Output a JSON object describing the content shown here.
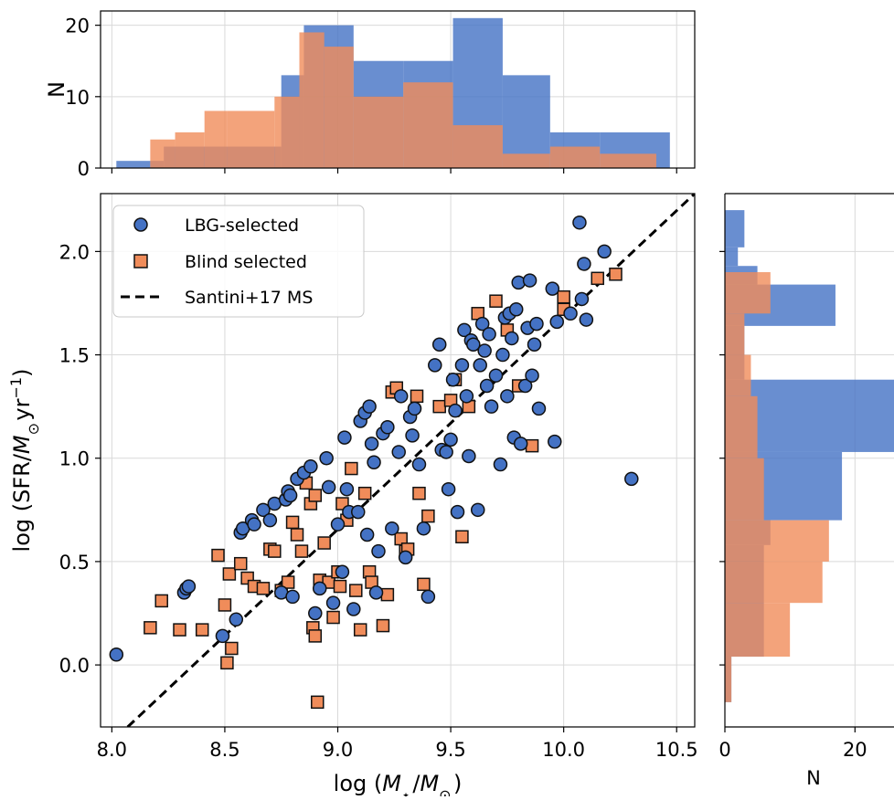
{
  "chart_data": [
    {
      "name": "main-scatter",
      "type": "scatter",
      "xlabel": "log (M⋆/M⊙)",
      "ylabel": "log (SFR/M⊙yr⁻¹)",
      "xlim": [
        7.95,
        10.58
      ],
      "ylim": [
        -0.3,
        2.28
      ],
      "xticks": [
        "8.0",
        "8.5",
        "9.0",
        "9.5",
        "10.0",
        "10.5"
      ],
      "yticks": [
        "0.0",
        "0.5",
        "1.0",
        "1.5",
        "2.0"
      ],
      "grid": true,
      "legend_position": "top-left",
      "legend": [
        {
          "label": "LBG-selected",
          "marker": "circle",
          "color": "#4472C4"
        },
        {
          "label": "Blind selected",
          "marker": "square",
          "color": "#F08C5A"
        },
        {
          "label": "Santini+17 MS",
          "marker": "dashed-line",
          "color": "#000000"
        }
      ],
      "series": [
        {
          "name": "LBG-selected",
          "marker": "circle",
          "color": "#4472C4",
          "points": [
            [
              8.02,
              0.05
            ],
            [
              8.32,
              0.35
            ],
            [
              8.33,
              0.37
            ],
            [
              8.34,
              0.38
            ],
            [
              8.49,
              0.14
            ],
            [
              8.55,
              0.22
            ],
            [
              8.57,
              0.64
            ],
            [
              8.58,
              0.66
            ],
            [
              8.62,
              0.7
            ],
            [
              8.63,
              0.68
            ],
            [
              8.67,
              0.75
            ],
            [
              8.7,
              0.7
            ],
            [
              8.72,
              0.78
            ],
            [
              8.75,
              0.35
            ],
            [
              8.77,
              0.8
            ],
            [
              8.78,
              0.84
            ],
            [
              8.79,
              0.82
            ],
            [
              8.8,
              0.33
            ],
            [
              8.82,
              0.9
            ],
            [
              8.85,
              0.93
            ],
            [
              8.88,
              0.96
            ],
            [
              8.9,
              0.25
            ],
            [
              8.92,
              0.37
            ],
            [
              8.95,
              1.0
            ],
            [
              8.96,
              0.86
            ],
            [
              8.98,
              0.3
            ],
            [
              9.0,
              0.68
            ],
            [
              9.02,
              0.45
            ],
            [
              9.03,
              1.1
            ],
            [
              9.04,
              0.85
            ],
            [
              9.05,
              0.74
            ],
            [
              9.07,
              0.27
            ],
            [
              9.09,
              0.74
            ],
            [
              9.1,
              1.18
            ],
            [
              9.12,
              1.22
            ],
            [
              9.13,
              0.63
            ],
            [
              9.14,
              1.25
            ],
            [
              9.15,
              1.07
            ],
            [
              9.16,
              0.98
            ],
            [
              9.17,
              0.35
            ],
            [
              9.18,
              0.55
            ],
            [
              9.2,
              1.12
            ],
            [
              9.22,
              1.15
            ],
            [
              9.24,
              0.66
            ],
            [
              9.27,
              1.03
            ],
            [
              9.28,
              1.3
            ],
            [
              9.3,
              0.52
            ],
            [
              9.32,
              1.2
            ],
            [
              9.33,
              1.11
            ],
            [
              9.34,
              1.24
            ],
            [
              9.36,
              0.97
            ],
            [
              9.38,
              0.66
            ],
            [
              9.4,
              0.33
            ],
            [
              9.43,
              1.45
            ],
            [
              9.45,
              1.55
            ],
            [
              9.46,
              1.04
            ],
            [
              9.48,
              1.03
            ],
            [
              9.49,
              0.85
            ],
            [
              9.5,
              1.09
            ],
            [
              9.51,
              1.38
            ],
            [
              9.52,
              1.23
            ],
            [
              9.53,
              0.74
            ],
            [
              9.55,
              1.45
            ],
            [
              9.56,
              1.62
            ],
            [
              9.57,
              1.3
            ],
            [
              9.58,
              1.01
            ],
            [
              9.59,
              1.57
            ],
            [
              9.6,
              1.55
            ],
            [
              9.62,
              0.75
            ],
            [
              9.63,
              1.45
            ],
            [
              9.64,
              1.65
            ],
            [
              9.65,
              1.52
            ],
            [
              9.66,
              1.35
            ],
            [
              9.67,
              1.6
            ],
            [
              9.68,
              1.25
            ],
            [
              9.7,
              1.4
            ],
            [
              9.72,
              0.97
            ],
            [
              9.73,
              1.5
            ],
            [
              9.74,
              1.68
            ],
            [
              9.75,
              1.3
            ],
            [
              9.76,
              1.7
            ],
            [
              9.77,
              1.58
            ],
            [
              9.78,
              1.1
            ],
            [
              9.79,
              1.72
            ],
            [
              9.8,
              1.85
            ],
            [
              9.81,
              1.07
            ],
            [
              9.83,
              1.35
            ],
            [
              9.84,
              1.63
            ],
            [
              9.85,
              1.86
            ],
            [
              9.86,
              1.4
            ],
            [
              9.87,
              1.55
            ],
            [
              9.88,
              1.65
            ],
            [
              9.89,
              1.24
            ],
            [
              9.95,
              1.82
            ],
            [
              9.96,
              1.08
            ],
            [
              9.97,
              1.66
            ],
            [
              10.03,
              1.7
            ],
            [
              10.07,
              2.14
            ],
            [
              10.08,
              1.77
            ],
            [
              10.09,
              1.94
            ],
            [
              10.1,
              1.67
            ],
            [
              10.18,
              2.0
            ],
            [
              10.3,
              0.9
            ]
          ]
        },
        {
          "name": "Blind selected",
          "marker": "square",
          "color": "#F08C5A",
          "points": [
            [
              8.17,
              0.18
            ],
            [
              8.22,
              0.31
            ],
            [
              8.3,
              0.17
            ],
            [
              8.4,
              0.17
            ],
            [
              8.47,
              0.53
            ],
            [
              8.5,
              0.29
            ],
            [
              8.51,
              0.01
            ],
            [
              8.52,
              0.44
            ],
            [
              8.53,
              0.08
            ],
            [
              8.57,
              0.49
            ],
            [
              8.6,
              0.42
            ],
            [
              8.63,
              0.38
            ],
            [
              8.67,
              0.37
            ],
            [
              8.7,
              0.56
            ],
            [
              8.72,
              0.55
            ],
            [
              8.75,
              0.36
            ],
            [
              8.78,
              0.4
            ],
            [
              8.8,
              0.69
            ],
            [
              8.82,
              0.63
            ],
            [
              8.84,
              0.55
            ],
            [
              8.86,
              0.88
            ],
            [
              8.88,
              0.78
            ],
            [
              8.9,
              0.82
            ],
            [
              8.89,
              0.18
            ],
            [
              8.9,
              0.14
            ],
            [
              8.91,
              -0.18
            ],
            [
              8.92,
              0.41
            ],
            [
              8.94,
              0.59
            ],
            [
              8.96,
              0.4
            ],
            [
              8.98,
              0.23
            ],
            [
              9.0,
              0.45
            ],
            [
              9.01,
              0.38
            ],
            [
              9.02,
              0.78
            ],
            [
              9.04,
              0.7
            ],
            [
              9.06,
              0.95
            ],
            [
              9.08,
              0.36
            ],
            [
              9.1,
              0.17
            ],
            [
              9.12,
              0.83
            ],
            [
              9.14,
              0.45
            ],
            [
              9.15,
              0.4
            ],
            [
              9.2,
              0.19
            ],
            [
              9.22,
              0.34
            ],
            [
              9.24,
              1.32
            ],
            [
              9.26,
              1.34
            ],
            [
              9.28,
              0.61
            ],
            [
              9.3,
              0.55
            ],
            [
              9.31,
              0.56
            ],
            [
              9.35,
              1.3
            ],
            [
              9.36,
              0.83
            ],
            [
              9.38,
              0.39
            ],
            [
              9.4,
              0.72
            ],
            [
              9.45,
              1.25
            ],
            [
              9.5,
              1.28
            ],
            [
              9.52,
              1.38
            ],
            [
              9.55,
              0.62
            ],
            [
              9.58,
              1.25
            ],
            [
              9.62,
              1.7
            ],
            [
              9.7,
              1.76
            ],
            [
              9.75,
              1.62
            ],
            [
              9.8,
              1.35
            ],
            [
              9.86,
              1.06
            ],
            [
              10.0,
              1.72
            ],
            [
              10.0,
              1.78
            ],
            [
              10.15,
              1.87
            ],
            [
              10.23,
              1.89
            ]
          ]
        },
        {
          "name": "Santini+17 MS",
          "type": "line",
          "style": "dashed",
          "color": "#000000",
          "points": [
            [
              8.07,
              -0.3
            ],
            [
              10.58,
              2.28
            ]
          ]
        }
      ]
    },
    {
      "name": "top-histogram",
      "type": "histogram",
      "orientation": "vertical",
      "ylabel": "N",
      "xlim": [
        7.95,
        10.58
      ],
      "ylim": [
        0,
        22
      ],
      "yticks": [
        "0",
        "10",
        "20"
      ],
      "grid": true,
      "series": [
        {
          "name": "LBG-selected",
          "color": "#4472C4",
          "bins": [
            [
              8.02,
              8.17,
              1
            ],
            [
              8.17,
              8.23,
              1
            ],
            [
              8.23,
              8.75,
              3
            ],
            [
              8.75,
              8.85,
              13
            ],
            [
              8.85,
              9.07,
              20
            ],
            [
              9.07,
              9.29,
              15
            ],
            [
              9.29,
              9.51,
              15
            ],
            [
              9.51,
              9.73,
              21
            ],
            [
              9.73,
              9.94,
              13
            ],
            [
              9.94,
              10.16,
              5
            ],
            [
              10.16,
              10.47,
              5
            ]
          ]
        },
        {
          "name": "Blind selected",
          "color": "#F08C5A",
          "bins": [
            [
              8.17,
              8.28,
              4
            ],
            [
              8.28,
              8.41,
              5
            ],
            [
              8.41,
              8.51,
              8
            ],
            [
              8.51,
              8.72,
              8
            ],
            [
              8.72,
              8.83,
              10
            ],
            [
              8.83,
              8.94,
              19
            ],
            [
              8.94,
              9.07,
              17
            ],
            [
              9.07,
              9.29,
              10
            ],
            [
              9.29,
              9.51,
              12
            ],
            [
              9.51,
              9.73,
              6
            ],
            [
              9.73,
              9.94,
              2
            ],
            [
              9.94,
              10.16,
              3
            ],
            [
              10.16,
              10.41,
              2
            ]
          ]
        }
      ]
    },
    {
      "name": "right-histogram",
      "type": "histogram",
      "orientation": "horizontal",
      "xlabel": "N",
      "xlim": [
        0,
        26
      ],
      "ylim": [
        -0.3,
        2.28
      ],
      "xticks": [
        "0",
        "20"
      ],
      "grid": true,
      "series": [
        {
          "name": "LBG-selected",
          "color": "#4472C4",
          "bins": [
            [
              -0.18,
              0.04,
              1
            ],
            [
              0.04,
              0.58,
              6
            ],
            [
              0.58,
              0.7,
              7
            ],
            [
              0.7,
              1.03,
              18
            ],
            [
              1.03,
              1.38,
              26
            ],
            [
              1.38,
              1.64,
              3
            ],
            [
              1.64,
              1.84,
              17
            ],
            [
              1.84,
              1.93,
              5
            ],
            [
              1.93,
              2.02,
              2
            ],
            [
              2.02,
              2.2,
              3
            ]
          ]
        },
        {
          "name": "Blind selected",
          "color": "#F08C5A",
          "bins": [
            [
              -0.18,
              0.04,
              1
            ],
            [
              0.04,
              0.3,
              10
            ],
            [
              0.3,
              0.5,
              15
            ],
            [
              0.5,
              0.7,
              16
            ],
            [
              0.7,
              1.0,
              6
            ],
            [
              1.0,
              1.3,
              5
            ],
            [
              1.3,
              1.5,
              4
            ],
            [
              1.5,
              1.7,
              3
            ],
            [
              1.7,
              1.9,
              7
            ]
          ]
        }
      ]
    }
  ]
}
